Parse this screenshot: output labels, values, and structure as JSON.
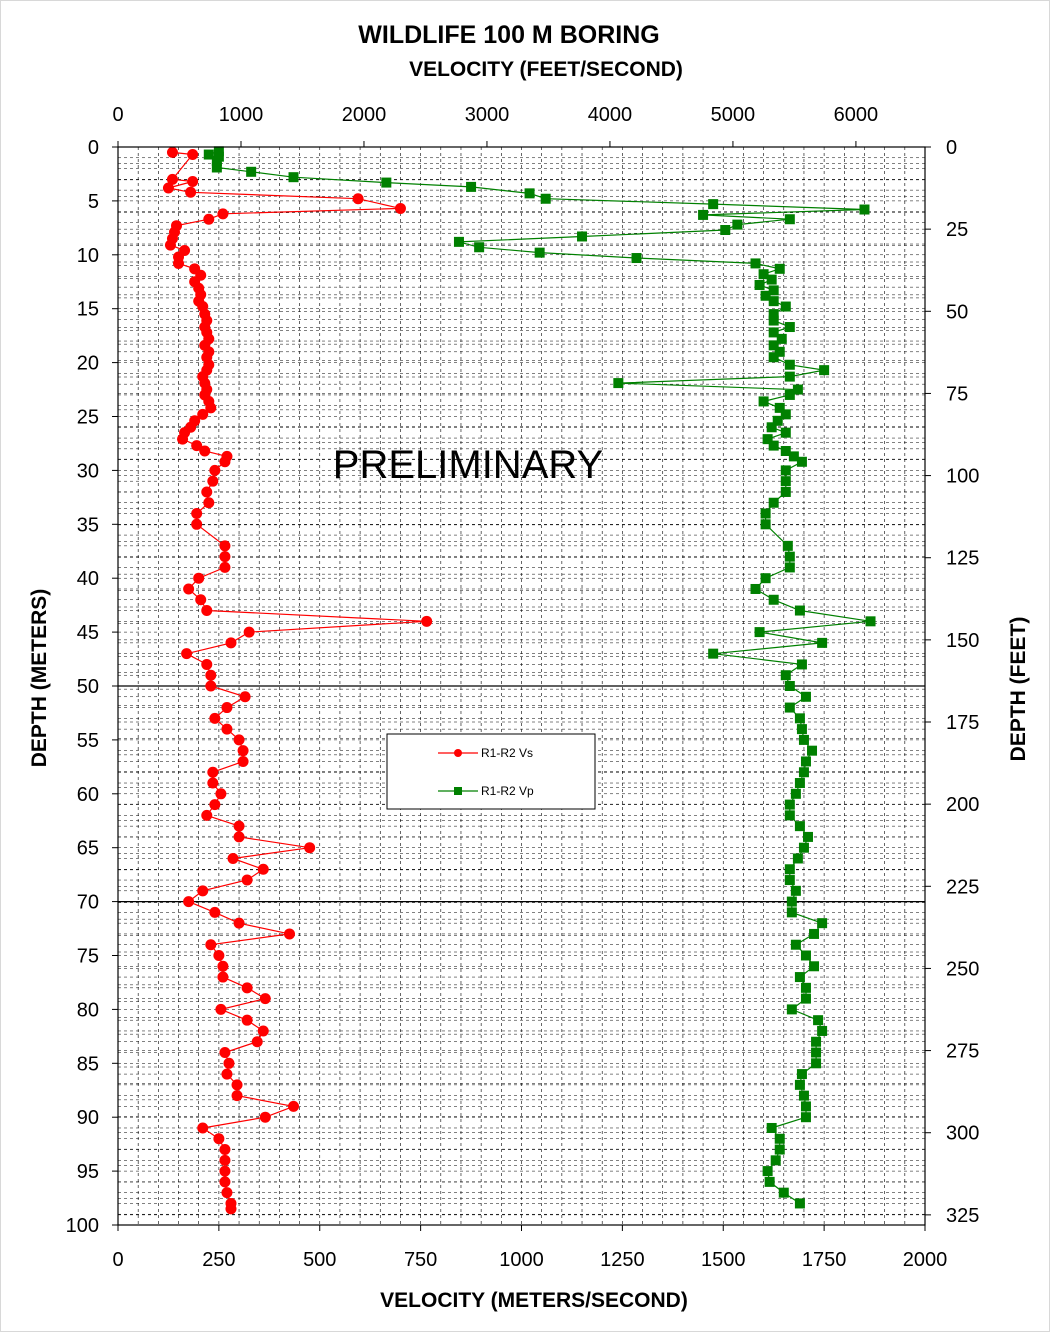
{
  "chart_data": {
    "type": "line",
    "title": "WILDLIFE 100 M BORING",
    "top_axis_label": "VELOCITY (FEET/SECOND)",
    "xlabel": "VELOCITY (METERS/SECOND)",
    "ylabel": "DEPTH (METERS)",
    "right_axis_label": "DEPTH (FEET)",
    "watermark": "PRELIMINARY",
    "xlim": [
      0,
      2000
    ],
    "ylim": [
      0,
      100
    ],
    "top_xlim_ft": [
      0,
      6561.68
    ],
    "right_ylim_ft": [
      0,
      328.084
    ],
    "x_ticks": [
      "0",
      "250",
      "500",
      "750",
      "1000",
      "1250",
      "1500",
      "1750",
      "2000"
    ],
    "y_ticks": [
      "0",
      "5",
      "10",
      "15",
      "20",
      "25",
      "30",
      "35",
      "40",
      "45",
      "50",
      "55",
      "60",
      "65",
      "70",
      "75",
      "80",
      "85",
      "90",
      "95",
      "100"
    ],
    "top_ticks": [
      "0",
      "1000",
      "2000",
      "3000",
      "4000",
      "5000",
      "6000"
    ],
    "right_ticks": [
      "0",
      "25",
      "50",
      "75",
      "100",
      "125",
      "150",
      "175",
      "200",
      "225",
      "250",
      "275",
      "300",
      "325"
    ],
    "grid": true,
    "legend_position": "center-right",
    "series": [
      {
        "name": "R1-R2 Vs",
        "color": "#ff0000",
        "marker": "circle",
        "points": [
          [
            135,
            0.5
          ],
          [
            185,
            0.7
          ],
          [
            135,
            3
          ],
          [
            185,
            3.2
          ],
          [
            125,
            3.8
          ],
          [
            180,
            4.2
          ],
          [
            595,
            4.8
          ],
          [
            700,
            5.7
          ],
          [
            260,
            6.2
          ],
          [
            225,
            6.7
          ],
          [
            145,
            7.3
          ],
          [
            140,
            7.9
          ],
          [
            135,
            8.5
          ],
          [
            130,
            9.1
          ],
          [
            165,
            9.6
          ],
          [
            150,
            10.2
          ],
          [
            150,
            10.8
          ],
          [
            190,
            11.3
          ],
          [
            205,
            11.9
          ],
          [
            190,
            12.5
          ],
          [
            200,
            13.1
          ],
          [
            205,
            13.7
          ],
          [
            200,
            14.3
          ],
          [
            210,
            14.8
          ],
          [
            215,
            15.5
          ],
          [
            220,
            16.1
          ],
          [
            215,
            16.7
          ],
          [
            220,
            17.2
          ],
          [
            225,
            17.8
          ],
          [
            215,
            18.4
          ],
          [
            225,
            19.0
          ],
          [
            220,
            19.5
          ],
          [
            225,
            20.2
          ],
          [
            220,
            20.7
          ],
          [
            210,
            21.3
          ],
          [
            215,
            21.9
          ],
          [
            220,
            22.5
          ],
          [
            215,
            23.0
          ],
          [
            225,
            23.6
          ],
          [
            230,
            24.2
          ],
          [
            210,
            24.8
          ],
          [
            190,
            25.4
          ],
          [
            180,
            26.0
          ],
          [
            165,
            26.5
          ],
          [
            160,
            27.1
          ],
          [
            195,
            27.7
          ],
          [
            215,
            28.2
          ],
          [
            270,
            28.7
          ],
          [
            265,
            29.2
          ],
          [
            240,
            30.0
          ],
          [
            235,
            31.0
          ],
          [
            220,
            32.0
          ],
          [
            225,
            33.0
          ],
          [
            195,
            34.0
          ],
          [
            195,
            35.0
          ],
          [
            265,
            37.0
          ],
          [
            265,
            38.0
          ],
          [
            265,
            39.0
          ],
          [
            200,
            40.0
          ],
          [
            175,
            41.0
          ],
          [
            205,
            42.0
          ],
          [
            220,
            43.0
          ],
          [
            765,
            44.0
          ],
          [
            325,
            45.0
          ],
          [
            280,
            46.0
          ],
          [
            170,
            47.0
          ],
          [
            220,
            48.0
          ],
          [
            230,
            49.0
          ],
          [
            230,
            50.0
          ],
          [
            315,
            51.0
          ],
          [
            270,
            52.0
          ],
          [
            240,
            53.0
          ],
          [
            270,
            54.0
          ],
          [
            300,
            55.0
          ],
          [
            310,
            56.0
          ],
          [
            310,
            57.0
          ],
          [
            235,
            58.0
          ],
          [
            235,
            59.0
          ],
          [
            255,
            60.0
          ],
          [
            240,
            61.0
          ],
          [
            220,
            62.0
          ],
          [
            300,
            63.0
          ],
          [
            300,
            64.0
          ],
          [
            475,
            65.0
          ],
          [
            285,
            66.0
          ],
          [
            360,
            67.0
          ],
          [
            320,
            68.0
          ],
          [
            210,
            69.0
          ],
          [
            175,
            70.0
          ],
          [
            240,
            71.0
          ],
          [
            300,
            72.0
          ],
          [
            425,
            73.0
          ],
          [
            230,
            74.0
          ],
          [
            250,
            75.0
          ],
          [
            260,
            76.0
          ],
          [
            260,
            77.0
          ],
          [
            320,
            78.0
          ],
          [
            365,
            79.0
          ],
          [
            255,
            80.0
          ],
          [
            320,
            81.0
          ],
          [
            360,
            82.0
          ],
          [
            345,
            83.0
          ],
          [
            265,
            84.0
          ],
          [
            275,
            85.0
          ],
          [
            270,
            86.0
          ],
          [
            295,
            87.0
          ],
          [
            295,
            88.0
          ],
          [
            435,
            89.0
          ],
          [
            365,
            90.0
          ],
          [
            210,
            91.0
          ],
          [
            250,
            92.0
          ],
          [
            265,
            93.0
          ],
          [
            265,
            94.0
          ],
          [
            265,
            95.0
          ],
          [
            265,
            96.0
          ],
          [
            270,
            97.0
          ],
          [
            280,
            98.0
          ],
          [
            280,
            98.5
          ]
        ]
      },
      {
        "name": "R1-R2 Vp",
        "color": "#008000",
        "marker": "square",
        "points": [
          [
            225,
            0.7
          ],
          [
            250,
            0.4
          ],
          [
            250,
            0.9
          ],
          [
            245,
            1.3
          ],
          [
            245,
            1.9
          ],
          [
            330,
            2.3
          ],
          [
            435,
            2.8
          ],
          [
            665,
            3.3
          ],
          [
            875,
            3.7
          ],
          [
            1020,
            4.3
          ],
          [
            1060,
            4.8
          ],
          [
            1475,
            5.3
          ],
          [
            1850,
            5.8
          ],
          [
            1450,
            6.3
          ],
          [
            1665,
            6.7
          ],
          [
            1535,
            7.2
          ],
          [
            1505,
            7.7
          ],
          [
            1150,
            8.3
          ],
          [
            845,
            8.8
          ],
          [
            895,
            9.3
          ],
          [
            1045,
            9.8
          ],
          [
            1285,
            10.3
          ],
          [
            1580,
            10.8
          ],
          [
            1640,
            11.3
          ],
          [
            1600,
            11.8
          ],
          [
            1620,
            12.3
          ],
          [
            1590,
            12.8
          ],
          [
            1625,
            13.3
          ],
          [
            1605,
            13.8
          ],
          [
            1625,
            14.3
          ],
          [
            1655,
            14.8
          ],
          [
            1625,
            15.5
          ],
          [
            1625,
            16.1
          ],
          [
            1665,
            16.7
          ],
          [
            1625,
            17.2
          ],
          [
            1645,
            17.8
          ],
          [
            1625,
            18.4
          ],
          [
            1640,
            19.0
          ],
          [
            1625,
            19.5
          ],
          [
            1665,
            20.2
          ],
          [
            1750,
            20.7
          ],
          [
            1665,
            21.3
          ],
          [
            1240,
            21.9
          ],
          [
            1685,
            22.5
          ],
          [
            1665,
            23.0
          ],
          [
            1600,
            23.6
          ],
          [
            1640,
            24.2
          ],
          [
            1655,
            24.8
          ],
          [
            1635,
            25.4
          ],
          [
            1620,
            26.0
          ],
          [
            1655,
            26.5
          ],
          [
            1610,
            27.1
          ],
          [
            1625,
            27.7
          ],
          [
            1655,
            28.2
          ],
          [
            1675,
            28.7
          ],
          [
            1695,
            29.2
          ],
          [
            1655,
            30.0
          ],
          [
            1655,
            31.0
          ],
          [
            1655,
            32.0
          ],
          [
            1625,
            33.0
          ],
          [
            1605,
            34.0
          ],
          [
            1605,
            35.0
          ],
          [
            1660,
            37.0
          ],
          [
            1665,
            38.0
          ],
          [
            1665,
            39.0
          ],
          [
            1605,
            40.0
          ],
          [
            1580,
            41.0
          ],
          [
            1625,
            42.0
          ],
          [
            1690,
            43.0
          ],
          [
            1865,
            44.0
          ],
          [
            1590,
            45.0
          ],
          [
            1745,
            46.0
          ],
          [
            1475,
            47.0
          ],
          [
            1695,
            48.0
          ],
          [
            1655,
            49.0
          ],
          [
            1665,
            50.0
          ],
          [
            1705,
            51.0
          ],
          [
            1665,
            52.0
          ],
          [
            1690,
            53.0
          ],
          [
            1695,
            54.0
          ],
          [
            1700,
            55.0
          ],
          [
            1720,
            56.0
          ],
          [
            1705,
            57.0
          ],
          [
            1700,
            58.0
          ],
          [
            1690,
            59.0
          ],
          [
            1680,
            60.0
          ],
          [
            1665,
            61.0
          ],
          [
            1665,
            62.0
          ],
          [
            1690,
            63.0
          ],
          [
            1710,
            64.0
          ],
          [
            1700,
            65.0
          ],
          [
            1685,
            66.0
          ],
          [
            1665,
            67.0
          ],
          [
            1665,
            68.0
          ],
          [
            1680,
            69.0
          ],
          [
            1670,
            70.0
          ],
          [
            1670,
            71.0
          ],
          [
            1745,
            72.0
          ],
          [
            1725,
            73.0
          ],
          [
            1680,
            74.0
          ],
          [
            1705,
            75.0
          ],
          [
            1725,
            76.0
          ],
          [
            1690,
            77.0
          ],
          [
            1705,
            78.0
          ],
          [
            1705,
            79.0
          ],
          [
            1670,
            80.0
          ],
          [
            1735,
            81.0
          ],
          [
            1745,
            82.0
          ],
          [
            1730,
            83.0
          ],
          [
            1730,
            84.0
          ],
          [
            1730,
            85.0
          ],
          [
            1695,
            86.0
          ],
          [
            1690,
            87.0
          ],
          [
            1700,
            88.0
          ],
          [
            1705,
            89.0
          ],
          [
            1705,
            90.0
          ],
          [
            1620,
            91.0
          ],
          [
            1640,
            92.0
          ],
          [
            1640,
            93.0
          ],
          [
            1630,
            94.0
          ],
          [
            1610,
            95.0
          ],
          [
            1615,
            96.0
          ],
          [
            1650,
            97.0
          ],
          [
            1690,
            98.0
          ]
        ]
      }
    ]
  }
}
